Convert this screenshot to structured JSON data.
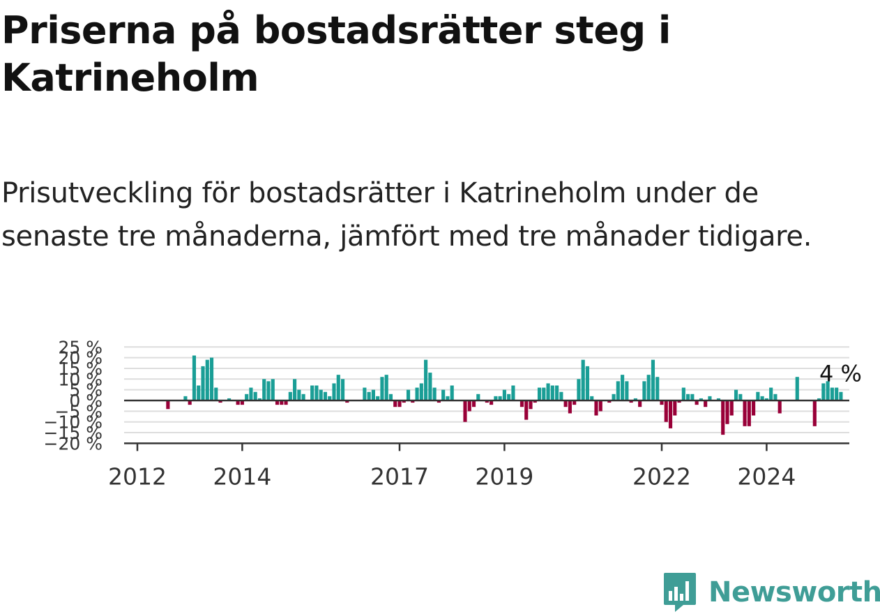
{
  "title": "Priserna på bostadsrätter steg i Katrineholm",
  "subtitle": "Prisutveckling för bostadsrätter i Katrineholm under de senaste tre månaderna, jämfört med tre månader tidigare.",
  "brand": {
    "name": "Newsworthy",
    "icon": "newsworthy-logo-icon",
    "color": "#3f9d96"
  },
  "colors": {
    "positive": "#1a9e96",
    "negative": "#990038",
    "grid": "#dddddd",
    "axis": "#333333"
  },
  "chart_data": {
    "type": "bar",
    "title": "",
    "xlabel": "",
    "ylabel": "",
    "x_ticks": [
      2012,
      2014,
      2017,
      2019,
      2022,
      2024
    ],
    "y_ticks": [
      25,
      20,
      15,
      10,
      5,
      0,
      -5,
      -10,
      -15,
      -20
    ],
    "y_tick_labels": [
      "25 %",
      "20 %",
      "15 %",
      "10 %",
      "5 %",
      "0 %",
      "−5 %",
      "−10 %",
      "−15 %",
      "−20 %"
    ],
    "ylim": [
      -20,
      25
    ],
    "grid": true,
    "last_label": "4 %",
    "series": [
      {
        "name": "Prisutveckling",
        "start": "2012-03",
        "frequency": "monthly",
        "values": [
          0,
          0,
          0,
          0,
          0,
          -4,
          0,
          0,
          0,
          2,
          -2,
          21,
          7,
          16,
          19,
          20,
          6,
          -1,
          0,
          1,
          0,
          -2,
          -2,
          3,
          6,
          4,
          1,
          10,
          9,
          10,
          -2,
          -2,
          -2,
          4,
          10,
          5,
          3,
          0,
          7,
          7,
          5,
          4,
          2,
          8,
          12,
          10,
          -1,
          0,
          0,
          0,
          6,
          4,
          5,
          2,
          11,
          12,
          3,
          -3,
          -3,
          -1,
          5,
          -1,
          6,
          8,
          19,
          13,
          6,
          -1,
          5,
          2,
          7,
          0,
          0,
          -10,
          -5,
          -3,
          3,
          0,
          -1,
          -2,
          2,
          2,
          5,
          3,
          7,
          0,
          -3,
          -9,
          -4,
          -1,
          6,
          6,
          8,
          7,
          7,
          4,
          -3,
          -6,
          -2,
          10,
          19,
          16,
          2,
          -7,
          -5,
          0,
          -1,
          3,
          9,
          12,
          9,
          -1,
          1,
          -3,
          9,
          12,
          19,
          11,
          -2,
          -10,
          -13,
          -7,
          -1,
          6,
          3,
          3,
          -2,
          1,
          -3,
          2,
          0,
          1,
          -16,
          -11,
          -7,
          5,
          3,
          -12,
          -12,
          -7,
          4,
          2,
          1,
          6,
          3,
          -6,
          0,
          0,
          0,
          11,
          0,
          0,
          0,
          -12,
          1,
          8,
          9,
          6,
          6,
          4
        ]
      }
    ]
  }
}
